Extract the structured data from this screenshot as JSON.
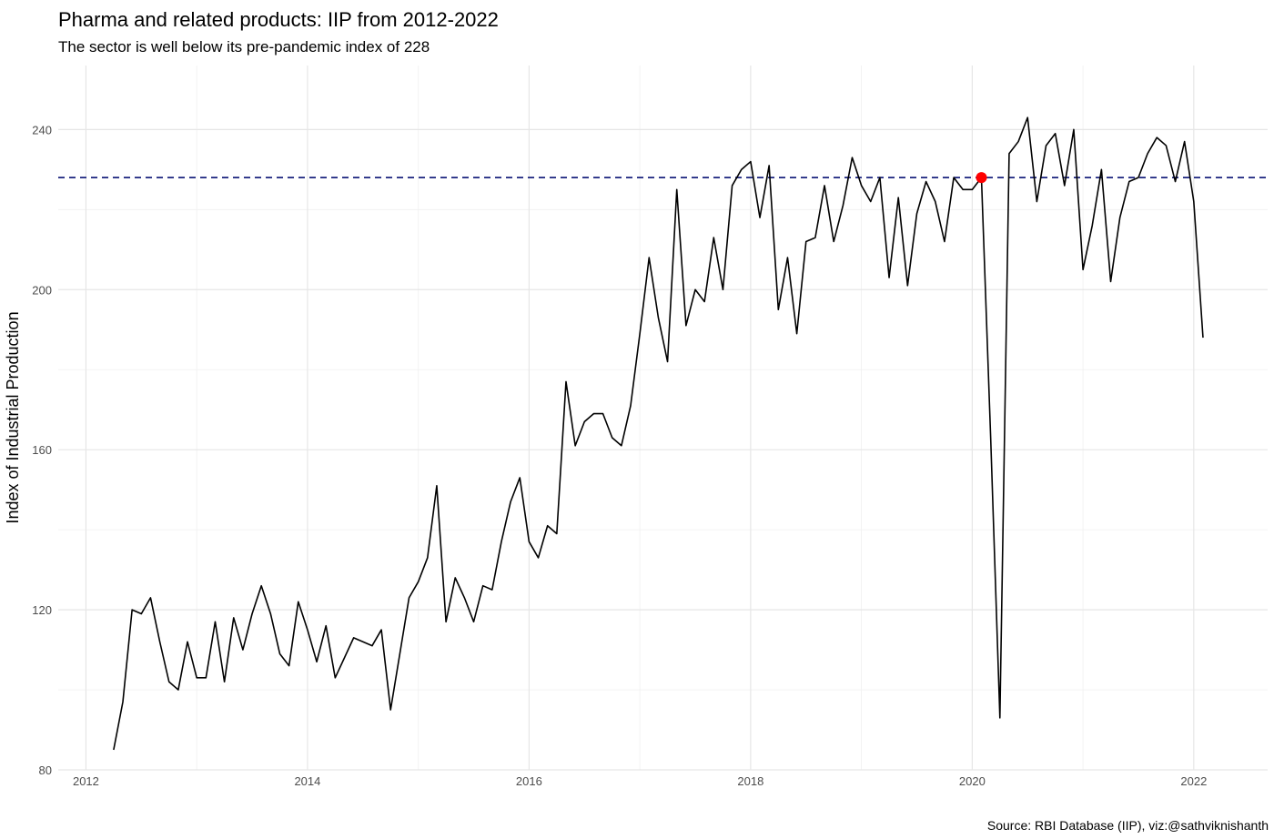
{
  "chart_data": {
    "type": "line",
    "title": "Pharma and related products: IIP from 2012-2022",
    "subtitle": "The sector is well below its pre-pandemic index of 228",
    "caption": "Source: RBI Database (IIP), viz:@sathviknishanth",
    "xlabel": "",
    "ylabel": "Index of Industrial Production",
    "x_ticks": [
      "2012",
      "2014",
      "2016",
      "2018",
      "2020",
      "2022"
    ],
    "y_ticks": [
      "80",
      "120",
      "160",
      "200",
      "240"
    ],
    "xlim": [
      "2011-10",
      "2022-09"
    ],
    "ylim": [
      80,
      256
    ],
    "grid": true,
    "reference_line": {
      "value": 228,
      "style": "dashed",
      "color": "#1a237e"
    },
    "highlight_point": {
      "x": "2020-02",
      "y": 228,
      "color": "#ff0000"
    },
    "line_color": "#000000",
    "series": [
      {
        "x": [
          "2012-04",
          "2012-05",
          "2012-06",
          "2012-07",
          "2012-08",
          "2012-09",
          "2012-10",
          "2012-11",
          "2012-12",
          "2013-01",
          "2013-02",
          "2013-03",
          "2013-04",
          "2013-05",
          "2013-06",
          "2013-07",
          "2013-08",
          "2013-09",
          "2013-10",
          "2013-11",
          "2013-12",
          "2014-01",
          "2014-02",
          "2014-03",
          "2014-04",
          "2014-05",
          "2014-06",
          "2014-07",
          "2014-08",
          "2014-09",
          "2014-10",
          "2014-11",
          "2014-12",
          "2015-01",
          "2015-02",
          "2015-03",
          "2015-04",
          "2015-05",
          "2015-06",
          "2015-07",
          "2015-08",
          "2015-09",
          "2015-10",
          "2015-11",
          "2015-12",
          "2016-01",
          "2016-02",
          "2016-03",
          "2016-04",
          "2016-05",
          "2016-06",
          "2016-07",
          "2016-08",
          "2016-09",
          "2016-10",
          "2016-11",
          "2016-12",
          "2017-01",
          "2017-02",
          "2017-03",
          "2017-04",
          "2017-05",
          "2017-06",
          "2017-07",
          "2017-08",
          "2017-09",
          "2017-10",
          "2017-11",
          "2017-12",
          "2018-01",
          "2018-02",
          "2018-03",
          "2018-04",
          "2018-05",
          "2018-06",
          "2018-07",
          "2018-08",
          "2018-09",
          "2018-10",
          "2018-11",
          "2018-12",
          "2019-01",
          "2019-02",
          "2019-03",
          "2019-04",
          "2019-05",
          "2019-06",
          "2019-07",
          "2019-08",
          "2019-09",
          "2019-10",
          "2019-11",
          "2019-12",
          "2020-01",
          "2020-02",
          "2020-03",
          "2020-04",
          "2020-05",
          "2020-06",
          "2020-07",
          "2020-08",
          "2020-09",
          "2020-10",
          "2020-11",
          "2020-12",
          "2021-01",
          "2021-02",
          "2021-03",
          "2021-04",
          "2021-05",
          "2021-06",
          "2021-07",
          "2021-08",
          "2021-09",
          "2021-10",
          "2021-11",
          "2021-12",
          "2022-01",
          "2022-02"
        ],
        "values": [
          85,
          97,
          120,
          119,
          123,
          112,
          102,
          100,
          112,
          103,
          103,
          117,
          102,
          118,
          110,
          119,
          126,
          119,
          109,
          106,
          122,
          115,
          107,
          116,
          103,
          108,
          113,
          112,
          111,
          115,
          95,
          109,
          123,
          127,
          133,
          151,
          117,
          128,
          123,
          117,
          126,
          125,
          137,
          147,
          153,
          137,
          133,
          141,
          139,
          177,
          161,
          167,
          169,
          169,
          163,
          161,
          171,
          189,
          208,
          193,
          182,
          225,
          191,
          200,
          197,
          213,
          200,
          226,
          230,
          232,
          218,
          231,
          195,
          208,
          189,
          212,
          213,
          226,
          212,
          221,
          233,
          226,
          222,
          228,
          203,
          223,
          201,
          219,
          227,
          222,
          212,
          228,
          225,
          225,
          228,
          163,
          93,
          234,
          237,
          243,
          222,
          236,
          239,
          226,
          240,
          205,
          216,
          230,
          202,
          218,
          227,
          228,
          234,
          238,
          236,
          227,
          237,
          222,
          188
        ]
      }
    ]
  }
}
